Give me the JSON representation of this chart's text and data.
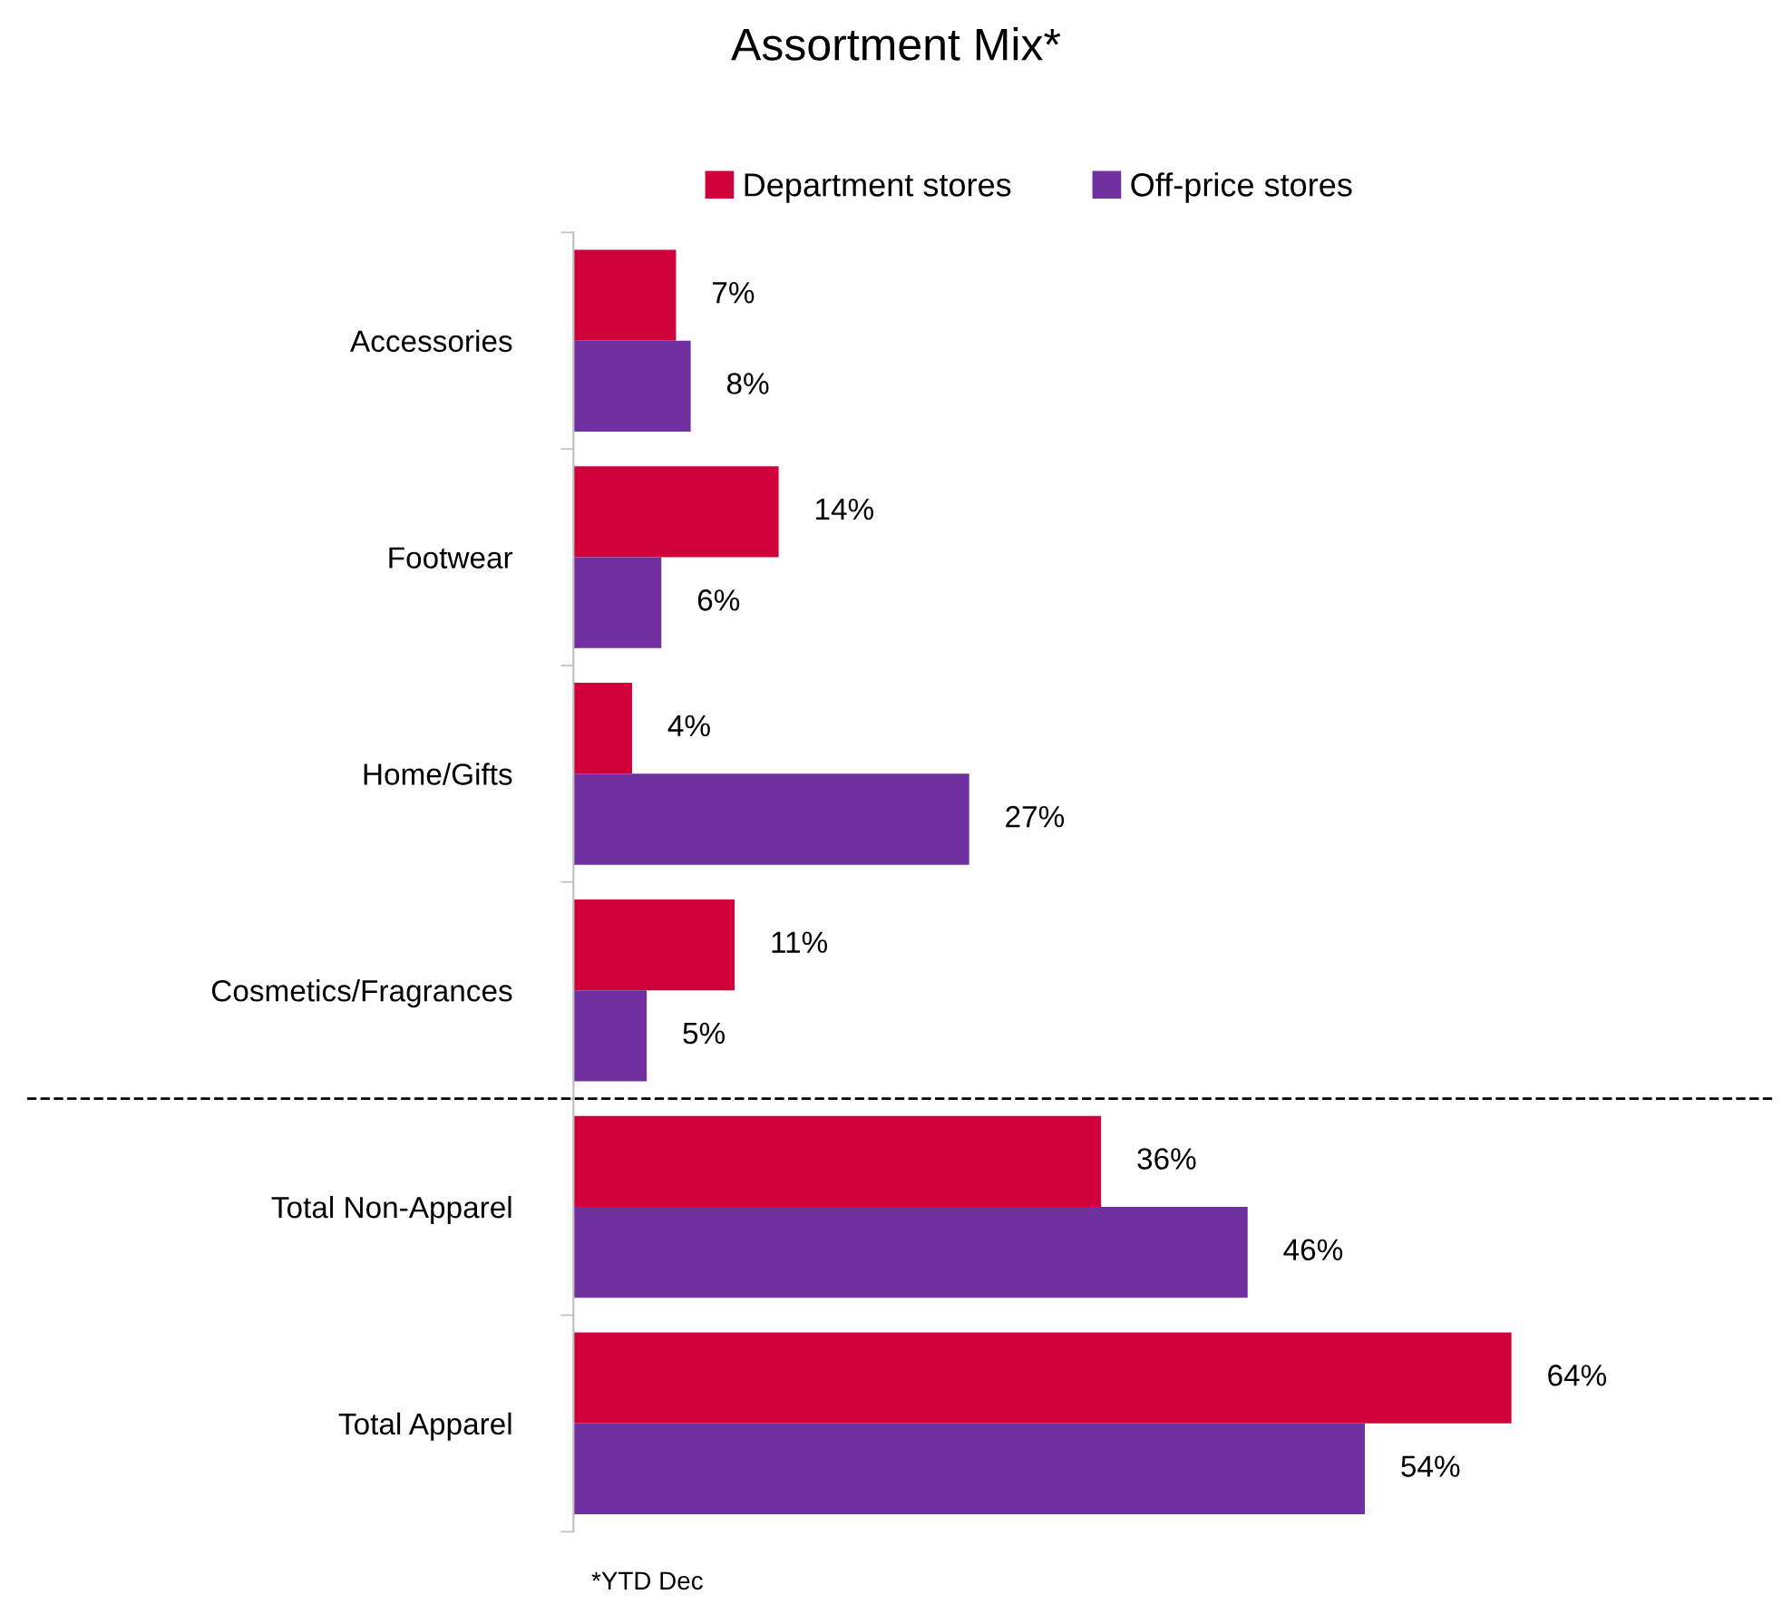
{
  "chart_data": {
    "type": "bar",
    "orientation": "horizontal",
    "title": "Assortment Mix*",
    "categories": [
      "Accessories",
      "Footwear",
      "Home/Gifts",
      "Cosmetics/Fragrances",
      "Total Non-Apparel",
      "Total Apparel"
    ],
    "series": [
      {
        "name": "Department stores",
        "color": "#d0003a",
        "values": [
          7,
          14,
          4,
          11,
          36,
          64
        ],
        "value_labels": [
          "7%",
          "14%",
          "4%",
          "11%",
          "36%",
          "64%"
        ]
      },
      {
        "name": "Off-price stores",
        "color": "#7030a0",
        "values": [
          8,
          6,
          27,
          5,
          46,
          54
        ],
        "value_labels": [
          "8%",
          "6%",
          "27%",
          "5%",
          "46%",
          "54%"
        ]
      }
    ],
    "legend": "top",
    "grid": false,
    "annotations": [
      "*YTD Dec"
    ]
  }
}
